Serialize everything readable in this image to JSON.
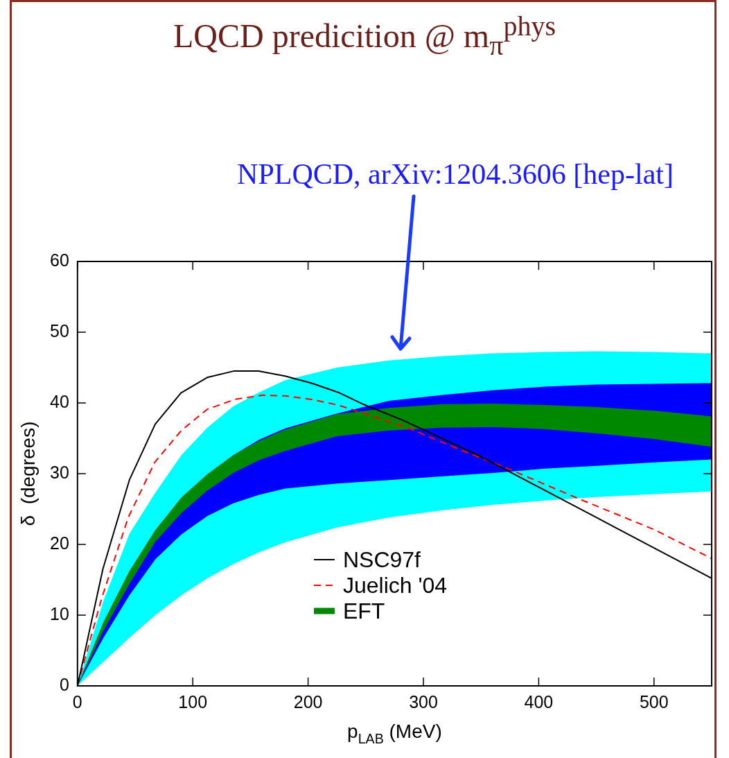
{
  "chart_data": {
    "type": "line",
    "title": "LQCD predicition @ m$_{π}$$^{phys}$",
    "xlabel": "p$_{LAB}$ (MeV)",
    "ylabel": "δ  (degrees)",
    "annotations": [
      "NPLQCD, arXiv:1204.3606 [hep-lat]"
    ],
    "xlim": [
      0,
      550
    ],
    "ylim": [
      0,
      60
    ],
    "xticks": [
      0,
      100,
      200,
      300,
      400,
      500
    ],
    "yticks": [
      0,
      10,
      20,
      30,
      40,
      50,
      60
    ],
    "grid": false,
    "legend": "bottom",
    "marker": "none",
    "series": [
      {
        "name": "NSC97f",
        "color": "#000000",
        "line_style": "solid",
        "x": [
          0,
          22,
          45,
          67.4,
          89.7,
          112.5,
          135.4,
          157,
          180,
          203,
          226,
          248,
          280,
          300,
          350,
          400,
          450,
          500,
          550
        ],
        "values": [
          0,
          16.5,
          29.1,
          37,
          41.4,
          43.6,
          44.5,
          44.5,
          43.8,
          42.8,
          41.5,
          39.8,
          37.7,
          36.2,
          32.4,
          28.1,
          23.8,
          19.5,
          15.2
        ]
      },
      {
        "name": "Juelich '04",
        "color": "#ff0000",
        "line_style": "dashed",
        "x": [
          0,
          21,
          44,
          67,
          90,
          112.5,
          136.6,
          160.6,
          180,
          203,
          226,
          247,
          289,
          330,
          372,
          437,
          500,
          550
        ],
        "values": [
          0,
          12.4,
          23.8,
          31.6,
          36.1,
          39.1,
          40.5,
          41.1,
          41,
          40.5,
          39.7,
          38.6,
          36.3,
          33.5,
          30.8,
          26.3,
          22.1,
          18.0
        ]
      },
      {
        "type": "area",
        "color": "#00ffff",
        "x": [
          0,
          22.5,
          45,
          67.5,
          90,
          112.5,
          135,
          157.5,
          180,
          225,
          270,
          315,
          360,
          405,
          450,
          500,
          550
        ],
        "values": [
          null,
          null,
          null,
          null,
          null,
          null,
          null,
          null,
          null,
          null,
          null,
          null,
          null,
          null,
          null,
          null,
          null
        ],
        "lower": [
          0,
          3.4,
          6.8,
          10.0,
          12.8,
          15.2,
          17.2,
          18.9,
          20.3,
          22.4,
          23.8,
          24.8,
          25.6,
          26.2,
          26.7,
          27.1,
          27.5
        ],
        "upper": [
          0,
          12,
          21.5,
          27.3,
          32.6,
          36.5,
          39.5,
          41.5,
          43.2,
          45.0,
          46.0,
          46.6,
          47.0,
          47.2,
          47.3,
          47.2,
          47.0
        ]
      },
      {
        "type": "area",
        "color": "#0000ff",
        "x": [
          0,
          22.5,
          45,
          67.5,
          90,
          112.5,
          135,
          157.5,
          180,
          225,
          270,
          315,
          360,
          405,
          450,
          500,
          550
        ],
        "values": [
          null,
          null,
          null,
          null,
          null,
          null,
          null,
          null,
          null,
          null,
          null,
          null,
          null,
          null,
          null,
          null,
          null
        ],
        "lower": [
          0,
          6.8,
          12.8,
          17.9,
          21.4,
          24.0,
          25.8,
          27.0,
          27.9,
          28.6,
          29.1,
          29.6,
          30.1,
          30.7,
          31.1,
          31.6,
          32.0
        ],
        "upper": [
          0,
          9.0,
          16.2,
          22.0,
          26.6,
          29.9,
          32.6,
          34.8,
          36.4,
          38.5,
          40.3,
          41.1,
          41.8,
          42.3,
          42.6,
          42.7,
          42.8
        ]
      },
      {
        "name": "EFT",
        "type": "area",
        "color": "#008800",
        "x": [
          0,
          22.5,
          45,
          67.5,
          90,
          112.5,
          135,
          157.5,
          180,
          225,
          270,
          315,
          360,
          405,
          450,
          500,
          550
        ],
        "values": [
          null,
          null,
          null,
          null,
          null,
          null,
          null,
          null,
          null,
          null,
          null,
          null,
          null,
          null,
          null,
          null,
          null
        ],
        "lower": [
          0,
          7.8,
          14.4,
          20.4,
          24.4,
          27.6,
          30.1,
          31.9,
          33.2,
          35.3,
          36.1,
          36.5,
          36.6,
          36.3,
          35.7,
          34.9,
          33.8
        ],
        "upper": [
          0,
          9.0,
          16.2,
          22.0,
          26.6,
          29.9,
          32.6,
          34.6,
          36.2,
          38.4,
          39.3,
          39.8,
          39.9,
          39.7,
          39.4,
          38.9,
          38.1
        ]
      }
    ]
  }
}
